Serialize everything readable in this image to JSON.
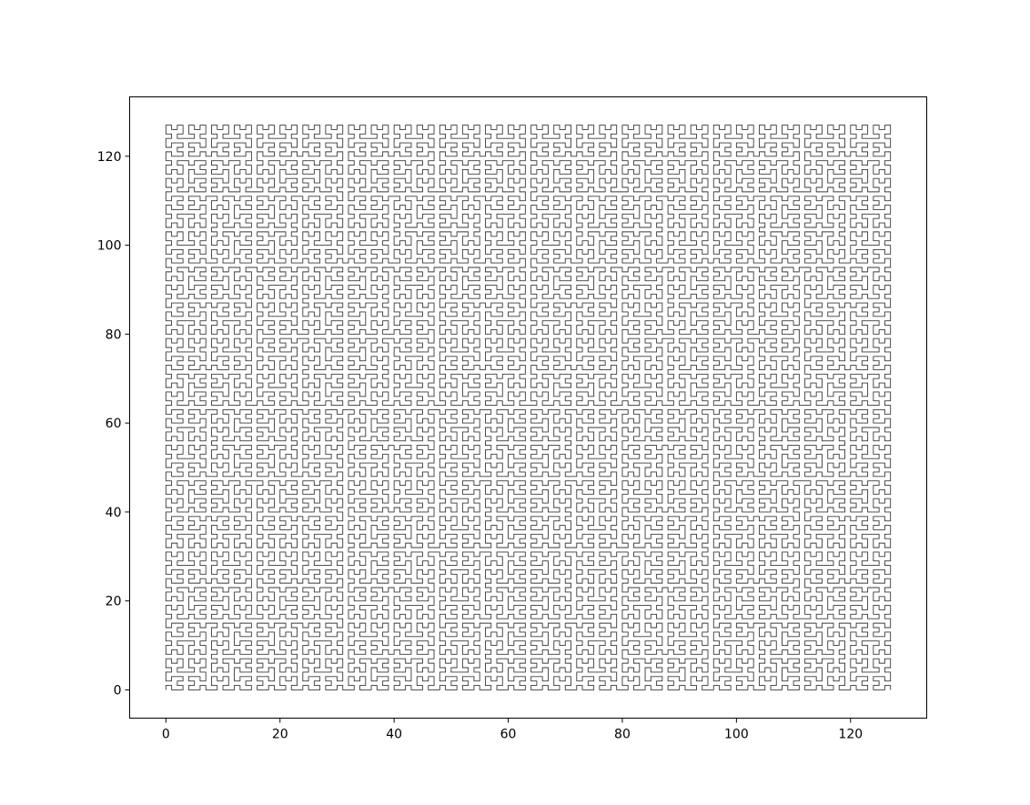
{
  "chart_data": {
    "type": "line",
    "title": "",
    "xlabel": "",
    "ylabel": "",
    "series": [
      {
        "name": "",
        "generator": "hilbert-curve",
        "order": 7,
        "grid_size": 128,
        "point_count": 16384
      }
    ],
    "xlim": [
      -6.35,
      133.35
    ],
    "ylim": [
      -6.35,
      133.35
    ],
    "xticks": [
      0,
      20,
      40,
      60,
      80,
      100,
      120
    ],
    "yticks": [
      0,
      20,
      40,
      60,
      80,
      100,
      120
    ],
    "xtick_labels": [
      "0",
      "20",
      "40",
      "60",
      "80",
      "100",
      "120"
    ],
    "ytick_labels": [
      "0",
      "20",
      "40",
      "60",
      "80",
      "100",
      "120"
    ],
    "grid": false,
    "legend": "none",
    "colors": {
      "line": "#3a3a3a",
      "axes": "#000000",
      "background": "#ffffff"
    }
  }
}
